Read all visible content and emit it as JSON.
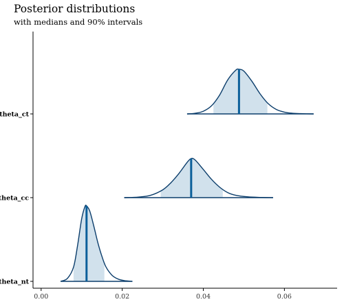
{
  "chart_data": {
    "type": "area",
    "title": "Posterior distributions",
    "subtitle": "with medians and 90% intervals",
    "xlabel": "",
    "ylabel": "",
    "xlim": [
      -0.002,
      0.073
    ],
    "x_ticks": [
      "0.00",
      "0.02",
      "0.04",
      "0.06"
    ],
    "x_tick_values": [
      0.0,
      0.02,
      0.04,
      0.06
    ],
    "grid": false,
    "legend": "none",
    "colors": {
      "density_line": "#0b3d6b",
      "interval_fill": "#d1e1ec",
      "median_line": "#0b5f9a",
      "axis": "#000000"
    },
    "series": [
      {
        "name": "theta_ct",
        "median": 0.0488,
        "interval_90": [
          0.0425,
          0.0558
        ],
        "x": [
          0.036,
          0.038,
          0.04,
          0.042,
          0.044,
          0.046,
          0.048,
          0.0488,
          0.05,
          0.052,
          0.054,
          0.056,
          0.058,
          0.06,
          0.062,
          0.064,
          0.0672
        ],
        "density": [
          0.0,
          0.015,
          0.06,
          0.18,
          0.42,
          0.76,
          0.98,
          1.0,
          0.96,
          0.73,
          0.45,
          0.23,
          0.1,
          0.04,
          0.015,
          0.006,
          0.0
        ]
      },
      {
        "name": "theta_cc",
        "median": 0.037,
        "interval_90": [
          0.0295,
          0.0448
        ],
        "x": [
          0.0205,
          0.024,
          0.027,
          0.03,
          0.032,
          0.034,
          0.036,
          0.037,
          0.038,
          0.04,
          0.042,
          0.044,
          0.046,
          0.048,
          0.051,
          0.054,
          0.0572
        ],
        "density": [
          0.0,
          0.015,
          0.06,
          0.2,
          0.38,
          0.62,
          0.9,
          1.0,
          0.96,
          0.72,
          0.47,
          0.27,
          0.13,
          0.06,
          0.02,
          0.006,
          0.0
        ]
      },
      {
        "name": "theta_nt",
        "median": 0.0112,
        "interval_90": [
          0.008,
          0.0156
        ],
        "x": [
          0.0048,
          0.0065,
          0.008,
          0.009,
          0.01,
          0.0108,
          0.0112,
          0.012,
          0.013,
          0.014,
          0.015,
          0.016,
          0.0175,
          0.019,
          0.0205,
          0.0225
        ],
        "density": [
          0.0,
          0.04,
          0.19,
          0.48,
          0.83,
          0.99,
          1.0,
          0.93,
          0.73,
          0.51,
          0.33,
          0.19,
          0.08,
          0.03,
          0.01,
          0.0
        ]
      }
    ]
  }
}
